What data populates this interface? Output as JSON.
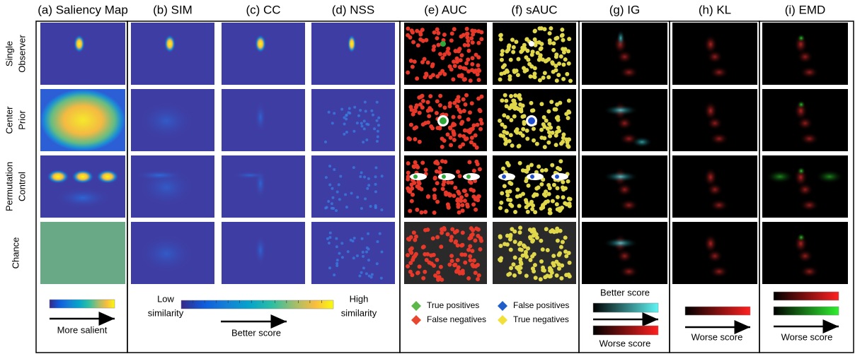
{
  "columns": [
    "(a) Saliency Map",
    "(b) SIM",
    "(c) CC",
    "(d) NSS",
    "(e) AUC",
    "(f) sAUC",
    "(g) IG",
    "(h) KL",
    "(i) EMD"
  ],
  "rows": [
    [
      "Single",
      "Observer"
    ],
    [
      "Center",
      "Prior"
    ],
    [
      "Permutation",
      "Control"
    ],
    [
      "Chance"
    ]
  ],
  "legends": {
    "saliency": "More salient",
    "sim": {
      "low": [
        "Low",
        "similarity"
      ],
      "high": [
        "High",
        "similarity"
      ],
      "arrow": "Better score"
    },
    "auc": [
      "True positives",
      "False negatives",
      "False positives",
      "True negatives"
    ],
    "ig": {
      "top": "Better score",
      "bottom": "Worse score"
    },
    "kl": "Worse score",
    "emd": "Worse score"
  }
}
